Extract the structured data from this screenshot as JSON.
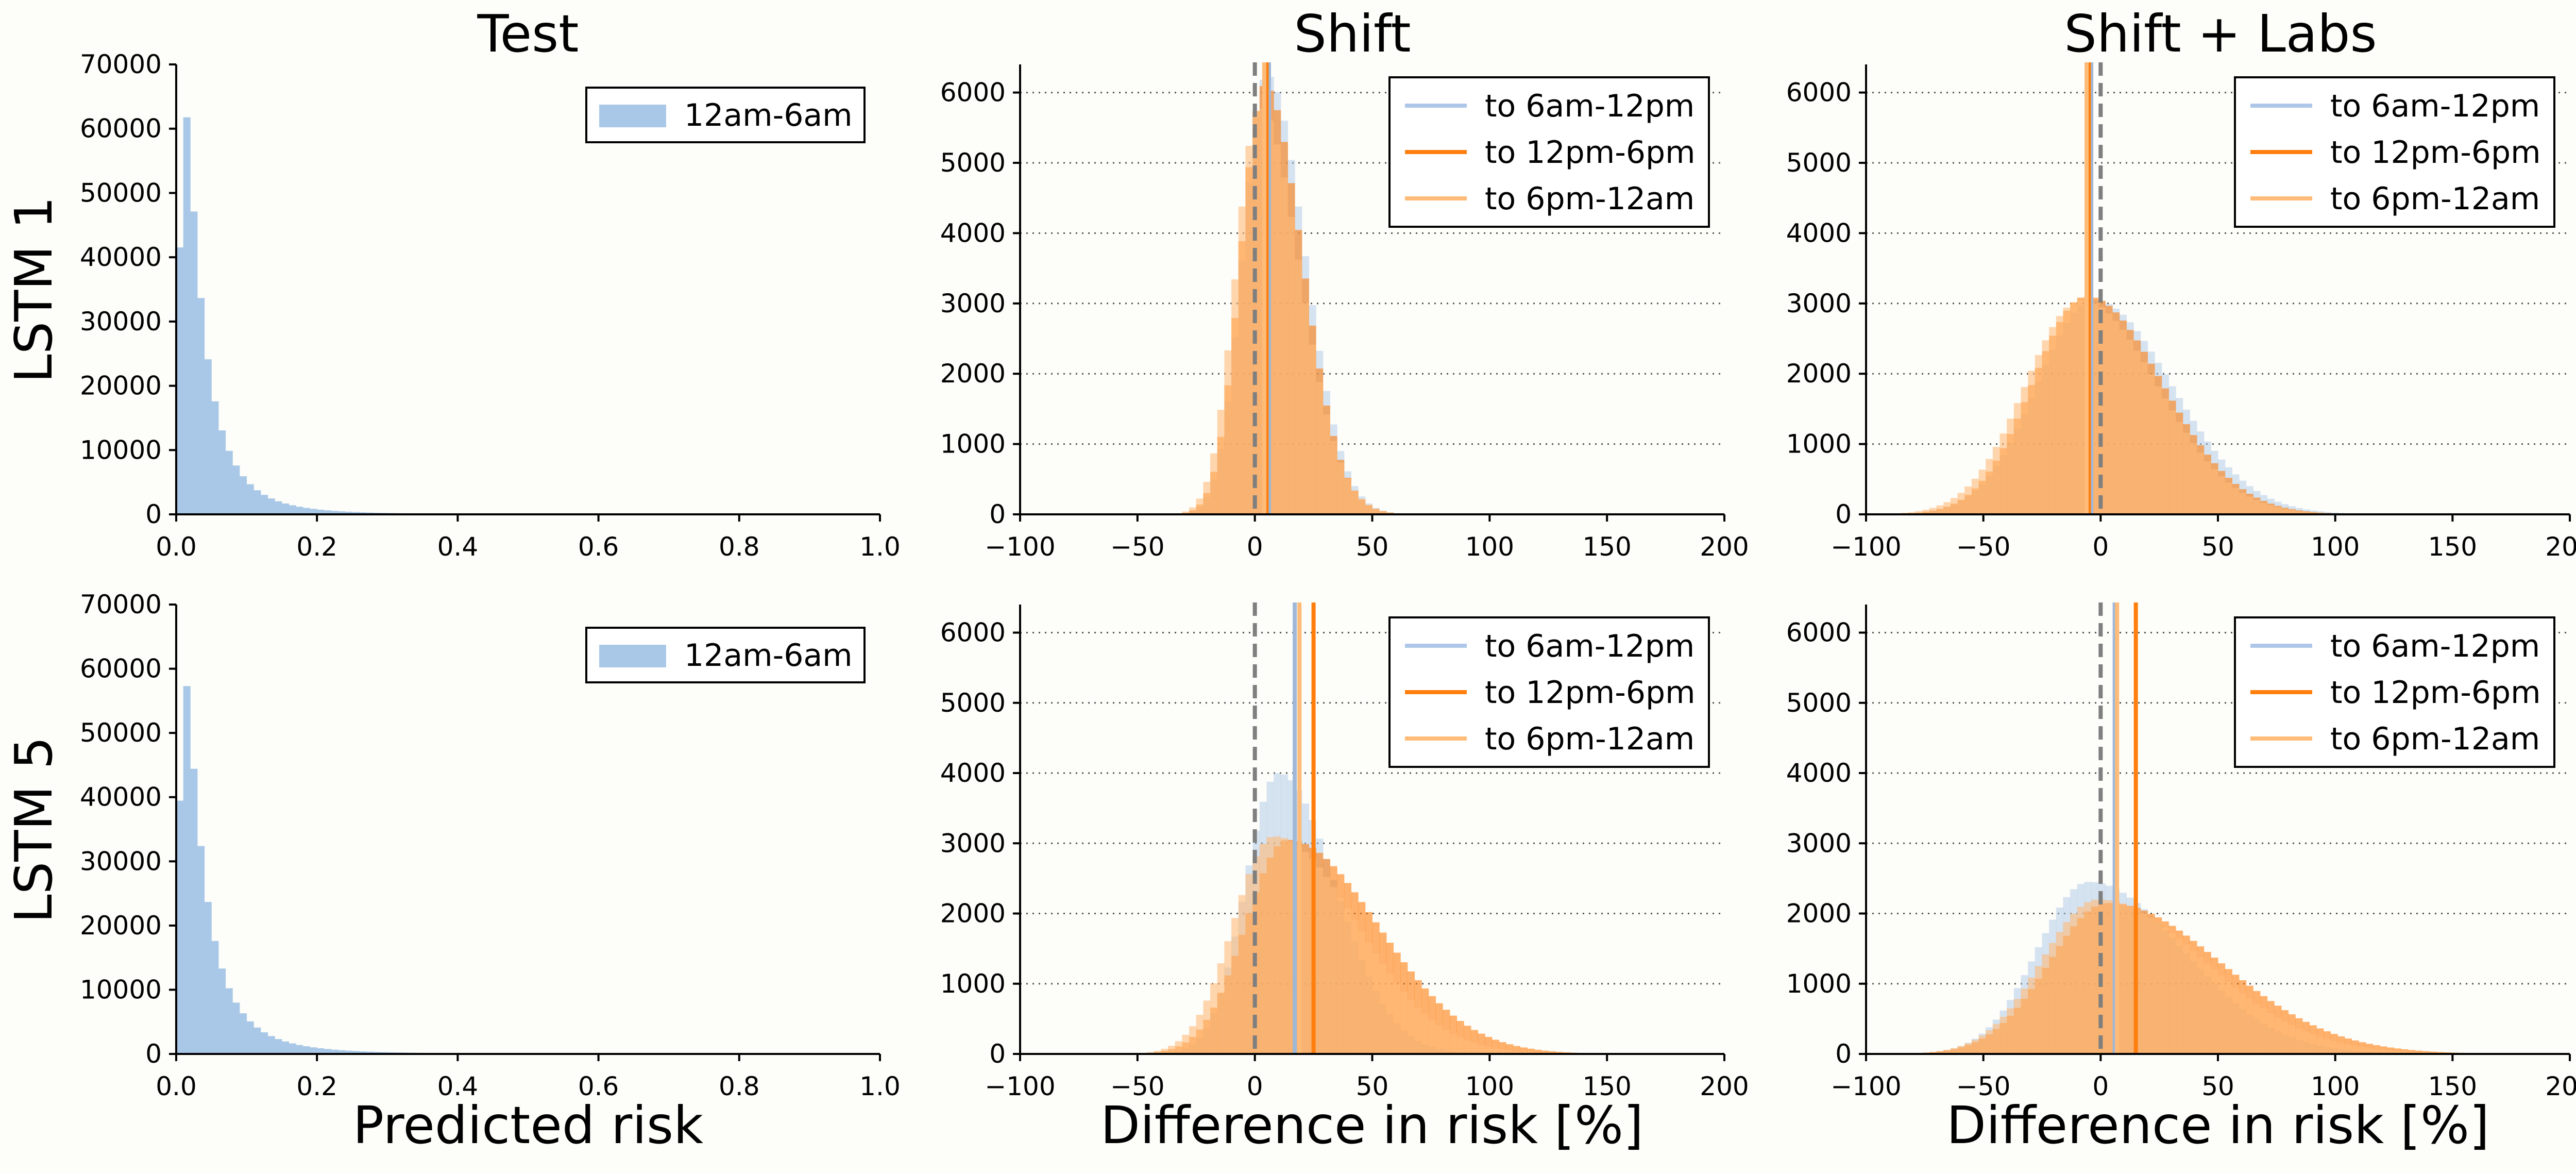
{
  "figure": {
    "column_titles": [
      "Test",
      "Shift",
      "Shift + Labs"
    ],
    "row_labels": [
      "LSTM 1",
      "LSTM 5"
    ],
    "xlabels": [
      "Predicted risk",
      "Difference in risk [%]",
      "Difference in risk [%]"
    ]
  },
  "colors": {
    "test_hist": "#a9c8e8",
    "to_6am_12pm": "#aec7e8",
    "to_12pm_6pm": "#ff7f0e",
    "to_6pm_12am": "#ffbb78",
    "hist_overlap": "#f4b685",
    "mean_line": "#7f7f7f",
    "axis": "#000000",
    "grid": "#555555"
  },
  "chart_data": [
    {
      "id": "test-lstm1",
      "type": "histogram",
      "row": "LSTM 1",
      "column": "Test",
      "title": "Test",
      "xlabel": "",
      "ylabel": "LSTM 1",
      "xlim": [
        0,
        1
      ],
      "ylim": [
        0,
        70000
      ],
      "xticks": [
        "0.0",
        "0.2",
        "0.4",
        "0.6",
        "0.8",
        "1.0"
      ],
      "yticks": [
        "0",
        "10000",
        "20000",
        "30000",
        "40000",
        "50000",
        "60000",
        "70000"
      ],
      "grid": false,
      "legend_position": "top-right",
      "series": [
        {
          "name": "12am-6am",
          "dist": "lognormal",
          "mode": 0.012,
          "sigma": 0.95,
          "peak": 63500
        }
      ]
    },
    {
      "id": "shift-lstm1",
      "type": "histogram",
      "row": "LSTM 1",
      "column": "Shift",
      "title": "Shift",
      "xlabel": "",
      "ylabel": "",
      "xlim": [
        -100,
        200
      ],
      "ylim": [
        0,
        6400
      ],
      "xticks": [
        "−100",
        "−50",
        "0",
        "50",
        "100",
        "150",
        "200"
      ],
      "yticks": [
        "0",
        "1000",
        "2000",
        "3000",
        "4000",
        "5000",
        "6000"
      ],
      "grid": true,
      "legend_position": "top-right",
      "mean_reference": 0,
      "series": [
        {
          "name": "to 6am-12pm",
          "mode": 5,
          "sl": 10,
          "sr": 16,
          "peak": 6250,
          "mean": 6
        },
        {
          "name": "to 12pm-6pm",
          "mode": 4,
          "sl": 10,
          "sr": 16,
          "peak": 6100,
          "mean": 5
        },
        {
          "name": "to 6pm-12am",
          "mode": 2,
          "sl": 10,
          "sr": 17,
          "peak": 5800,
          "mean": 4
        }
      ]
    },
    {
      "id": "shiftlabs-lstm1",
      "type": "histogram",
      "row": "LSTM 1",
      "column": "Shift + Labs",
      "title": "Shift + Labs",
      "xlabel": "",
      "ylabel": "",
      "xlim": [
        -100,
        200
      ],
      "ylim": [
        0,
        6400
      ],
      "xticks": [
        "−100",
        "−50",
        "0",
        "50",
        "100",
        "150",
        "200"
      ],
      "yticks": [
        "0",
        "1000",
        "2000",
        "3000",
        "4000",
        "5000",
        "6000"
      ],
      "grid": true,
      "legend_position": "top-right",
      "mean_reference": 0,
      "series": [
        {
          "name": "to 6am-12pm",
          "mode": -3,
          "sl": 24,
          "sr": 33,
          "peak": 3050,
          "mean": -4
        },
        {
          "name": "to 12pm-6pm",
          "mode": -6,
          "sl": 23,
          "sr": 32,
          "peak": 3100,
          "mean": -5
        },
        {
          "name": "to 6pm-12am",
          "mode": -8,
          "sl": 24,
          "sr": 32,
          "peak": 3050,
          "mean": -6
        }
      ]
    },
    {
      "id": "test-lstm5",
      "type": "histogram",
      "row": "LSTM 5",
      "column": "Test",
      "title": "",
      "xlabel": "Predicted risk",
      "ylabel": "LSTM 5",
      "xlim": [
        0,
        1
      ],
      "ylim": [
        0,
        70000
      ],
      "xticks": [
        "0.0",
        "0.2",
        "0.4",
        "0.6",
        "0.8",
        "1.0"
      ],
      "yticks": [
        "0",
        "10000",
        "20000",
        "30000",
        "40000",
        "50000",
        "60000",
        "70000"
      ],
      "grid": false,
      "legend_position": "top-right",
      "series": [
        {
          "name": "12am-6am",
          "dist": "lognormal",
          "mode": 0.012,
          "sigma": 0.98,
          "peak": 58800
        }
      ]
    },
    {
      "id": "shift-lstm5",
      "type": "histogram",
      "row": "LSTM 5",
      "column": "Shift",
      "title": "",
      "xlabel": "Difference in risk [%]",
      "ylabel": "",
      "xlim": [
        -100,
        200
      ],
      "ylim": [
        0,
        6400
      ],
      "xticks": [
        "−100",
        "−50",
        "0",
        "50",
        "100",
        "150",
        "200"
      ],
      "yticks": [
        "0",
        "1000",
        "2000",
        "3000",
        "4000",
        "5000",
        "6000"
      ],
      "grid": true,
      "legend_position": "top-right",
      "mean_reference": 0,
      "series": [
        {
          "name": "to 6am-12pm",
          "mode": 10,
          "sl": 14,
          "sr": 24,
          "peak": 4000,
          "mean": 17
        },
        {
          "name": "to 12pm-6pm",
          "mode": 14,
          "sl": 18,
          "sr": 38,
          "peak": 3050,
          "mean": 25
        },
        {
          "name": "to 6pm-12am",
          "mode": 8,
          "sl": 17,
          "sr": 35,
          "peak": 3100,
          "mean": 19
        }
      ]
    },
    {
      "id": "shiftlabs-lstm5",
      "type": "histogram",
      "row": "LSTM 5",
      "column": "Shift + Labs",
      "title": "",
      "xlabel": "Difference in risk [%]",
      "ylabel": "",
      "xlim": [
        -100,
        200
      ],
      "ylim": [
        0,
        6400
      ],
      "xticks": [
        "−100",
        "−50",
        "0",
        "50",
        "100",
        "150",
        "200"
      ],
      "yticks": [
        "0",
        "1000",
        "2000",
        "3000",
        "4000",
        "5000",
        "6000"
      ],
      "grid": true,
      "legend_position": "top-right",
      "mean_reference": 0,
      "series": [
        {
          "name": "to 6am-12pm",
          "mode": -5,
          "sl": 22,
          "sr": 40,
          "peak": 2450,
          "mean": 6
        },
        {
          "name": "to 12pm-6pm",
          "mode": 3,
          "sl": 25,
          "sr": 48,
          "peak": 2150,
          "mean": 15
        },
        {
          "name": "to 6pm-12am",
          "mode": -1,
          "sl": 24,
          "sr": 45,
          "peak": 2200,
          "mean": 7
        }
      ]
    }
  ]
}
